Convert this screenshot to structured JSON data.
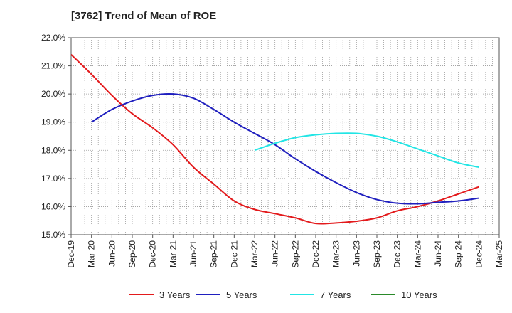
{
  "chart_data": {
    "type": "line",
    "title": "[3762]  Trend of Mean of ROE",
    "xlabel": "",
    "ylabel": "",
    "ylim": [
      15.0,
      22.0
    ],
    "y_ticks": [
      "15.0%",
      "16.0%",
      "17.0%",
      "18.0%",
      "19.0%",
      "20.0%",
      "21.0%",
      "22.0%"
    ],
    "x_ticks": [
      "Dec-19",
      "Mar-20",
      "Jun-20",
      "Sep-20",
      "Dec-20",
      "Mar-21",
      "Jun-21",
      "Sep-21",
      "Dec-21",
      "Mar-22",
      "Jun-22",
      "Sep-22",
      "Dec-22",
      "Mar-23",
      "Jun-23",
      "Sep-23",
      "Dec-23",
      "Mar-24",
      "Jun-24",
      "Sep-24",
      "Dec-24",
      "Mar-25"
    ],
    "grid": true,
    "legend_position": "bottom",
    "series": [
      {
        "name": "3 Years",
        "color": "#e31a1c",
        "x": [
          "Dec-19",
          "Mar-20",
          "Jun-20",
          "Sep-20",
          "Dec-20",
          "Mar-21",
          "Jun-21",
          "Sep-21",
          "Dec-21",
          "Mar-22",
          "Jun-22",
          "Sep-22",
          "Dec-22",
          "Mar-23",
          "Jun-23",
          "Sep-23",
          "Dec-23",
          "Mar-24",
          "Jun-24",
          "Sep-24",
          "Dec-24"
        ],
        "values": [
          21.4,
          20.7,
          19.95,
          19.3,
          18.8,
          18.2,
          17.4,
          16.8,
          16.2,
          15.9,
          15.75,
          15.6,
          15.4,
          15.42,
          15.48,
          15.6,
          15.85,
          16.0,
          16.2,
          16.45,
          16.7
        ]
      },
      {
        "name": "5 Years",
        "color": "#1f1fbf",
        "x": [
          "Mar-20",
          "Jun-20",
          "Sep-20",
          "Dec-20",
          "Mar-21",
          "Jun-21",
          "Sep-21",
          "Dec-21",
          "Mar-22",
          "Jun-22",
          "Sep-22",
          "Dec-22",
          "Mar-23",
          "Jun-23",
          "Sep-23",
          "Dec-23",
          "Mar-24",
          "Jun-24",
          "Sep-24",
          "Dec-24"
        ],
        "values": [
          19.0,
          19.45,
          19.75,
          19.95,
          20.0,
          19.85,
          19.45,
          19.0,
          18.6,
          18.2,
          17.7,
          17.25,
          16.85,
          16.5,
          16.25,
          16.12,
          16.1,
          16.15,
          16.2,
          16.3
        ]
      },
      {
        "name": "7 Years",
        "color": "#22e5e5",
        "x": [
          "Mar-22",
          "Jun-22",
          "Sep-22",
          "Dec-22",
          "Mar-23",
          "Jun-23",
          "Sep-23",
          "Dec-23",
          "Mar-24",
          "Jun-24",
          "Sep-24",
          "Dec-24"
        ],
        "values": [
          18.0,
          18.25,
          18.45,
          18.55,
          18.6,
          18.6,
          18.5,
          18.3,
          18.05,
          17.8,
          17.55,
          17.4
        ]
      },
      {
        "name": "10 Years",
        "color": "#2a8a2a",
        "x": [],
        "values": []
      }
    ]
  }
}
